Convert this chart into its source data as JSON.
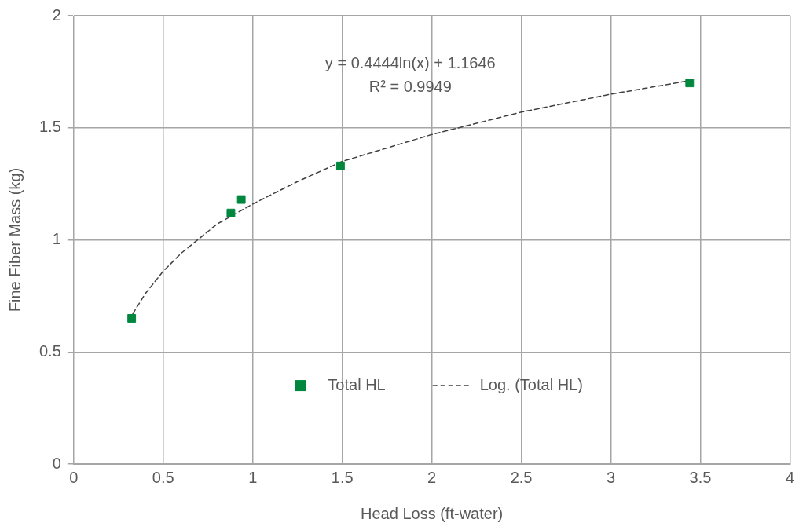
{
  "chart_data": {
    "type": "scatter",
    "xlabel": "Head Loss (ft-water)",
    "ylabel": "Fine Fiber Mass (kg)",
    "xlim": [
      0,
      4
    ],
    "xticks": [
      0,
      0.5,
      1,
      1.5,
      2,
      2.5,
      3,
      3.5,
      4
    ],
    "ylim": [
      0,
      2
    ],
    "yticks": [
      0,
      0.5,
      1,
      1.5,
      2
    ],
    "grid": true,
    "legend": "bottom",
    "marker": "square",
    "annotations": [
      "y = 0.4444ln(x) + 1.1646",
      "R² = 0.9949"
    ],
    "series": [
      {
        "name": "Total HL",
        "color": "#00873e",
        "x": [
          0.324,
          0.878,
          0.936,
          1.49,
          3.44
        ],
        "values": [
          0.65,
          1.12,
          1.18,
          1.33,
          1.7
        ]
      },
      {
        "name": "Log. (Total HL)",
        "type": "line",
        "color": "#404040",
        "line_style": "dashed",
        "marker": "none",
        "x": [
          0.33,
          0.4,
          0.5,
          0.6,
          0.8,
          1,
          1.25,
          1.5,
          2,
          2.5,
          3,
          3.44
        ],
        "values": [
          0.67,
          0.76,
          0.86,
          0.94,
          1.07,
          1.16,
          1.26,
          1.35,
          1.47,
          1.57,
          1.65,
          1.71
        ]
      }
    ]
  }
}
